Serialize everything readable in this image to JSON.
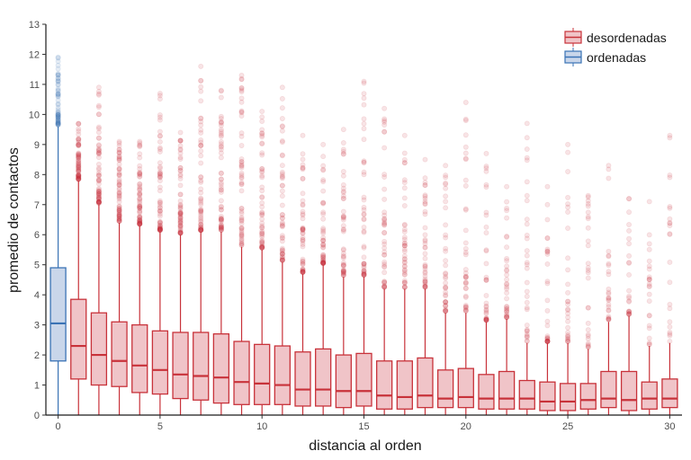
{
  "chart_data": {
    "type": "boxplot",
    "xlabel": "distancia al orden",
    "ylabel": "promedio de contactos",
    "xlim": [
      -0.6,
      30.6
    ],
    "ylim": [
      0,
      13
    ],
    "x_ticks": [
      0,
      5,
      10,
      15,
      20,
      25,
      30
    ],
    "y_ticks": [
      0,
      1,
      2,
      3,
      4,
      5,
      6,
      7,
      8,
      9,
      10,
      11,
      12,
      13
    ],
    "grid": false,
    "legend_position": "top-right",
    "legend": [
      {
        "label": "desordenadas",
        "series": "desordenadas"
      },
      {
        "label": "ordenadas",
        "series": "ordenadas"
      }
    ],
    "colors": {
      "desordenadas_fill": "#f0c4c8",
      "desordenadas_line": "#c8323a",
      "ordenadas_fill": "#c9d6ea",
      "ordenadas_line": "#3a73b5"
    },
    "series": [
      {
        "name": "ordenadas",
        "boxes": [
          {
            "x": 0,
            "whisker_low": 0,
            "q1": 1.8,
            "median": 3.05,
            "q3": 4.9,
            "whisker_high": 9.6,
            "outlier_max": 11.9
          }
        ]
      },
      {
        "name": "desordenadas",
        "boxes": [
          {
            "x": 1,
            "whisker_low": 0,
            "q1": 1.2,
            "median": 2.3,
            "q3": 3.85,
            "whisker_high": 7.8,
            "outlier_max": 9.7
          },
          {
            "x": 2,
            "whisker_low": 0,
            "q1": 1.0,
            "median": 2.0,
            "q3": 3.4,
            "whisker_high": 7.0,
            "outlier_max": 10.9
          },
          {
            "x": 3,
            "whisker_low": 0,
            "q1": 0.95,
            "median": 1.8,
            "q3": 3.1,
            "whisker_high": 6.4,
            "outlier_max": 9.1
          },
          {
            "x": 4,
            "whisker_low": 0,
            "q1": 0.75,
            "median": 1.65,
            "q3": 3.0,
            "whisker_high": 6.3,
            "outlier_max": 9.1
          },
          {
            "x": 5,
            "whisker_low": 0,
            "q1": 0.7,
            "median": 1.5,
            "q3": 2.8,
            "whisker_high": 6.1,
            "outlier_max": 10.7
          },
          {
            "x": 6,
            "whisker_low": 0,
            "q1": 0.55,
            "median": 1.35,
            "q3": 2.75,
            "whisker_high": 6.0,
            "outlier_max": 9.4
          },
          {
            "x": 7,
            "whisker_low": 0,
            "q1": 0.5,
            "median": 1.3,
            "q3": 2.75,
            "whisker_high": 6.1,
            "outlier_max": 11.6
          },
          {
            "x": 8,
            "whisker_low": 0,
            "q1": 0.4,
            "median": 1.25,
            "q3": 2.7,
            "whisker_high": 6.1,
            "outlier_max": 10.8
          },
          {
            "x": 9,
            "whisker_low": 0,
            "q1": 0.35,
            "median": 1.1,
            "q3": 2.45,
            "whisker_high": 5.6,
            "outlier_max": 11.3
          },
          {
            "x": 10,
            "whisker_low": 0,
            "q1": 0.35,
            "median": 1.05,
            "q3": 2.35,
            "whisker_high": 5.5,
            "outlier_max": 10.1
          },
          {
            "x": 11,
            "whisker_low": 0,
            "q1": 0.35,
            "median": 1.0,
            "q3": 2.3,
            "whisker_high": 5.1,
            "outlier_max": 10.9
          },
          {
            "x": 12,
            "whisker_low": 0,
            "q1": 0.3,
            "median": 0.85,
            "q3": 2.1,
            "whisker_high": 4.7,
            "outlier_max": 9.3
          },
          {
            "x": 13,
            "whisker_low": 0,
            "q1": 0.3,
            "median": 0.85,
            "q3": 2.2,
            "whisker_high": 5.0,
            "outlier_max": 9.0
          },
          {
            "x": 14,
            "whisker_low": 0,
            "q1": 0.25,
            "median": 0.8,
            "q3": 2.0,
            "whisker_high": 4.6,
            "outlier_max": 9.5
          },
          {
            "x": 15,
            "whisker_low": 0,
            "q1": 0.3,
            "median": 0.8,
            "q3": 2.05,
            "whisker_high": 4.6,
            "outlier_max": 11.1
          },
          {
            "x": 16,
            "whisker_low": 0,
            "q1": 0.2,
            "median": 0.65,
            "q3": 1.8,
            "whisker_high": 4.2,
            "outlier_max": 10.2
          },
          {
            "x": 17,
            "whisker_low": 0,
            "q1": 0.2,
            "median": 0.6,
            "q3": 1.8,
            "whisker_high": 4.2,
            "outlier_max": 9.3
          },
          {
            "x": 18,
            "whisker_low": 0,
            "q1": 0.25,
            "median": 0.65,
            "q3": 1.9,
            "whisker_high": 4.2,
            "outlier_max": 8.5
          },
          {
            "x": 19,
            "whisker_low": 0,
            "q1": 0.25,
            "median": 0.55,
            "q3": 1.5,
            "whisker_high": 3.4,
            "outlier_max": 8.3
          },
          {
            "x": 20,
            "whisker_low": 0,
            "q1": 0.25,
            "median": 0.6,
            "q3": 1.55,
            "whisker_high": 3.4,
            "outlier_max": 10.4
          },
          {
            "x": 21,
            "whisker_low": 0,
            "q1": 0.2,
            "median": 0.55,
            "q3": 1.35,
            "whisker_high": 3.1,
            "outlier_max": 8.7
          },
          {
            "x": 22,
            "whisker_low": 0,
            "q1": 0.2,
            "median": 0.55,
            "q3": 1.45,
            "whisker_high": 3.2,
            "outlier_max": 7.6
          },
          {
            "x": 23,
            "whisker_low": 0,
            "q1": 0.2,
            "median": 0.55,
            "q3": 1.15,
            "whisker_high": 2.4,
            "outlier_max": 9.7
          },
          {
            "x": 24,
            "whisker_low": 0,
            "q1": 0.15,
            "median": 0.45,
            "q3": 1.1,
            "whisker_high": 2.4,
            "outlier_max": 7.6
          },
          {
            "x": 25,
            "whisker_low": 0,
            "q1": 0.15,
            "median": 0.45,
            "q3": 1.05,
            "whisker_high": 2.4,
            "outlier_max": 9.0
          },
          {
            "x": 26,
            "whisker_low": 0,
            "q1": 0.2,
            "median": 0.5,
            "q3": 1.05,
            "whisker_high": 2.2,
            "outlier_max": 7.3
          },
          {
            "x": 27,
            "whisker_low": 0,
            "q1": 0.25,
            "median": 0.55,
            "q3": 1.45,
            "whisker_high": 3.1,
            "outlier_max": 8.3
          },
          {
            "x": 28,
            "whisker_low": 0,
            "q1": 0.15,
            "median": 0.5,
            "q3": 1.45,
            "whisker_high": 3.3,
            "outlier_max": 7.2
          },
          {
            "x": 29,
            "whisker_low": 0,
            "q1": 0.2,
            "median": 0.55,
            "q3": 1.1,
            "whisker_high": 2.3,
            "outlier_max": 7.1
          },
          {
            "x": 30,
            "whisker_low": 0,
            "q1": 0.25,
            "median": 0.55,
            "q3": 1.2,
            "whisker_high": 2.4,
            "outlier_max": 9.3
          }
        ]
      }
    ]
  }
}
